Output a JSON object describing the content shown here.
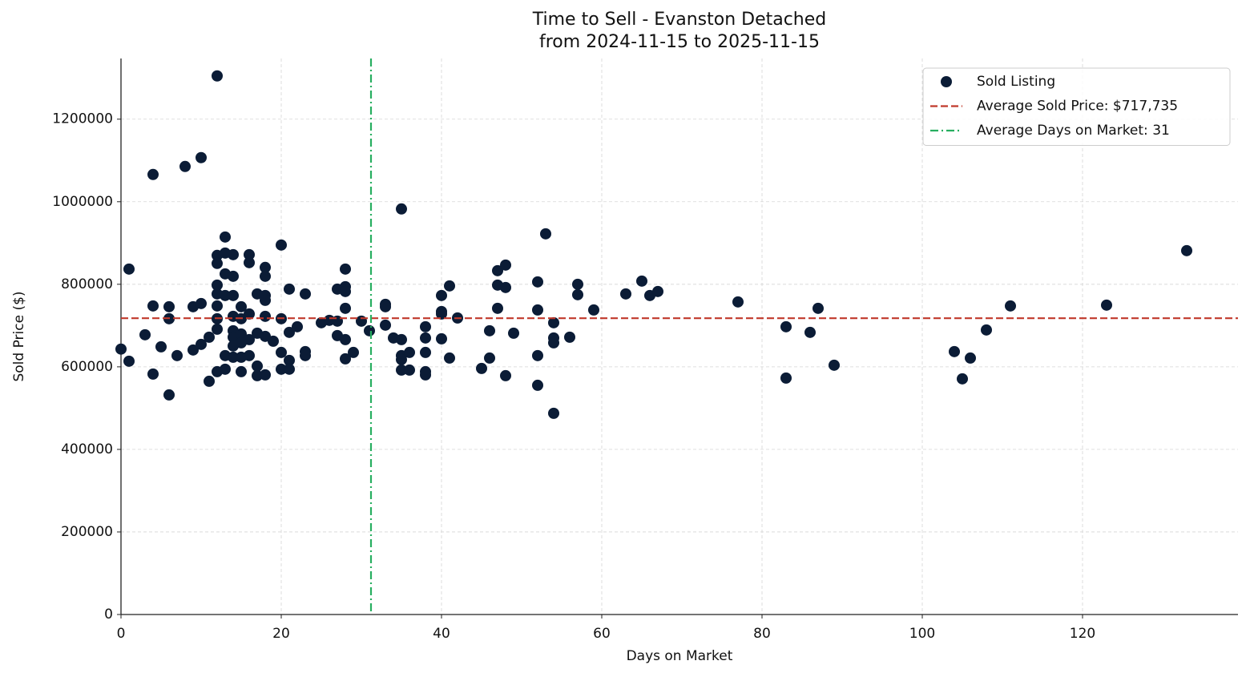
{
  "chart_data": {
    "type": "scatter",
    "title": "Time to Sell - Evanston Detached",
    "subtitle": "from 2024-11-15 to 2025-11-15",
    "x_label": "Days on Market",
    "y_label": "Sold Price ($)",
    "xlim": [
      0,
      139.4
    ],
    "ylim": [
      0,
      1347000
    ],
    "xticks": [
      0,
      20,
      40,
      60,
      80,
      100,
      120
    ],
    "yticks": [
      0,
      200000,
      400000,
      600000,
      800000,
      1000000,
      1200000
    ],
    "grid": true,
    "legend": "upper right",
    "series": [
      {
        "name": "Sold Listing",
        "color": "#0b1c36",
        "x": [
          0,
          1,
          1,
          3,
          4,
          4,
          4,
          5,
          6,
          6,
          6,
          7,
          8,
          9,
          9,
          10,
          10,
          10,
          11,
          11,
          12,
          12,
          12,
          12,
          12,
          12,
          12,
          12,
          12,
          13,
          13,
          13,
          13,
          13,
          13,
          14,
          14,
          14,
          14,
          14,
          14,
          14,
          14,
          15,
          15,
          15,
          15,
          15,
          15,
          16,
          16,
          16,
          16,
          16,
          17,
          17,
          17,
          17,
          18,
          18,
          18,
          18,
          18,
          18,
          18,
          19,
          20,
          20,
          20,
          20,
          21,
          21,
          21,
          21,
          22,
          23,
          23,
          23,
          25,
          26,
          27,
          27,
          27,
          28,
          28,
          28,
          28,
          28,
          28,
          29,
          30,
          31,
          33,
          33,
          33,
          34,
          35,
          35,
          35,
          35,
          35,
          36,
          36,
          38,
          38,
          38,
          38,
          38,
          40,
          40,
          40,
          40,
          41,
          41,
          42,
          45,
          46,
          46,
          47,
          47,
          47,
          48,
          48,
          48,
          49,
          52,
          52,
          52,
          52,
          53,
          54,
          54,
          54,
          54,
          56,
          57,
          57,
          59,
          63,
          65,
          66,
          67,
          77,
          83,
          83,
          86,
          87,
          89,
          104,
          105,
          106,
          108,
          111,
          123,
          133
        ],
        "values": [
          643000,
          613600,
          836900,
          677700,
          747600,
          1066000,
          582500,
          648500,
          745600,
          716500,
          532000,
          627200,
          1085400,
          745600,
          640800,
          753400,
          654400,
          1106800,
          671800,
          565000,
          1304800,
          869900,
          850500,
          798000,
          776700,
          747600,
          716500,
          691200,
          588300,
          914500,
          875700,
          825200,
          772800,
          627200,
          594200,
          871800,
          819400,
          772800,
          722300,
          687400,
          671800,
          650500,
          623300,
          745600,
          716500,
          679600,
          658200,
          623300,
          588300,
          871800,
          852400,
          728100,
          666000,
          627200,
          776700,
          681500,
          601900,
          578600,
          840800,
          819400,
          772800,
          761100,
          722300,
          673800,
          580600,
          662100,
          895100,
          716500,
          634900,
          594200,
          788300,
          683500,
          615500,
          594200,
          697100,
          776700,
          636900,
          627200,
          706800,
          712600,
          788300,
          710700,
          675700,
          836900,
          794200,
          782500,
          741700,
          666000,
          619400,
          634900,
          710700,
          687400,
          751400,
          745600,
          701000,
          669900,
          982500,
          666000,
          627200,
          617500,
          592200,
          634900,
          592200,
          697100,
          669900,
          634900,
          588300,
          580600,
          772800,
          734000,
          728100,
          667900,
          796100,
          621300,
          718400,
          596100,
          687400,
          621300,
          833000,
          798000,
          741700,
          846600,
          792200,
          578600,
          681500,
          805800,
          737800,
          627200,
          555300,
          922300,
          706800,
          669900,
          658200,
          487400,
          671800,
          800000,
          774700,
          737800,
          776700,
          807700,
          772800,
          782500,
          757300,
          697100,
          572800,
          683500,
          741700,
          603900,
          636900,
          570900,
          621300,
          689300,
          747600,
          749500,
          881500
        ]
      }
    ],
    "reference_lines": [
      {
        "name": "Average Sold Price: $717,735",
        "axis": "y",
        "value": 717735,
        "color": "#c0392b",
        "style": "dashed"
      },
      {
        "name": "Average Days on Market: 31",
        "axis": "x",
        "value": 31.2,
        "color": "#27ae60",
        "style": "dashdot"
      }
    ]
  }
}
